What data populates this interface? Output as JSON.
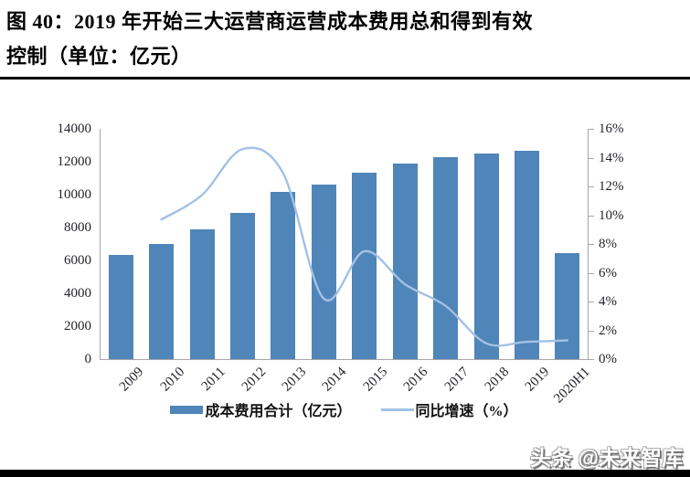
{
  "figure": {
    "title_line1": "图 40：2019 年开始三大运营商运营成本费用总和得到有效",
    "title_line2": "控制（单位：亿元）"
  },
  "watermark": "头条 @未来智库",
  "chart_data": {
    "type": "combo",
    "categories": [
      "2009",
      "2010",
      "2011",
      "2012",
      "2013",
      "2014",
      "2015",
      "2016",
      "2017",
      "2018",
      "2019",
      "2020H1"
    ],
    "series": [
      {
        "name": "成本费用合计（亿元）",
        "type": "bar",
        "axis": "left",
        "color": "#4f85b8",
        "values": [
          6320,
          7000,
          7890,
          8900,
          10150,
          10620,
          11330,
          11880,
          12290,
          12480,
          12660,
          6440
        ]
      },
      {
        "name": "同比增速（%）",
        "type": "line",
        "axis": "right",
        "color": "#a3c1e5",
        "values": [
          null,
          9.7,
          11.4,
          14.6,
          12.9,
          4.2,
          7.5,
          5.2,
          3.7,
          1.1,
          1.2,
          1.3
        ]
      }
    ],
    "left_axis": {
      "min": 0,
      "max": 14000,
      "step": 2000,
      "tick_labels": [
        "0",
        "2000",
        "4000",
        "6000",
        "8000",
        "10000",
        "12000",
        "14000"
      ]
    },
    "right_axis": {
      "min": 0,
      "max": 16,
      "step": 2,
      "unit": "%",
      "tick_labels": [
        "0%",
        "2%",
        "4%",
        "6%",
        "8%",
        "10%",
        "12%",
        "14%",
        "16%"
      ]
    },
    "legend_position": "bottom",
    "grid": false,
    "smoothed_line": true
  }
}
